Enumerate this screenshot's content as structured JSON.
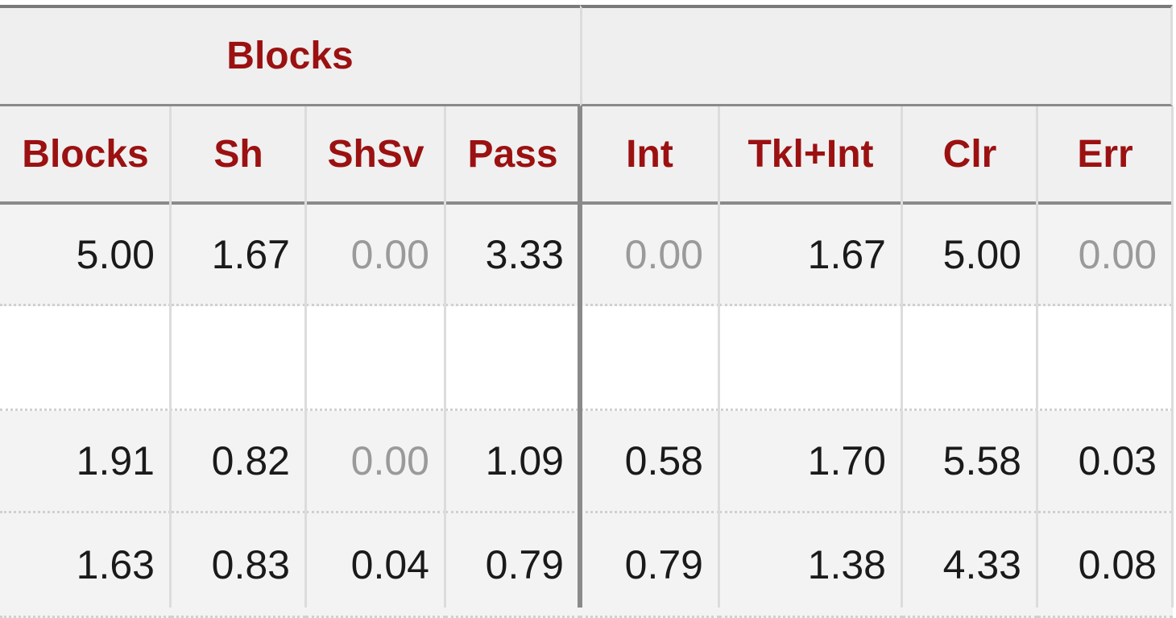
{
  "table": {
    "group_header": "Blocks",
    "columns": [
      "Blocks",
      "Sh",
      "ShSv",
      "Pass",
      "Int",
      "Tkl+Int",
      "Clr",
      "Err"
    ],
    "rows": [
      [
        "5.00",
        "1.67",
        "0.00",
        "3.33",
        "0.00",
        "1.67",
        "5.00",
        "0.00"
      ],
      [
        "1.91",
        "0.82",
        "0.00",
        "1.09",
        "0.58",
        "1.70",
        "5.58",
        "0.03"
      ],
      [
        "1.63",
        "0.83",
        "0.04",
        "0.79",
        "0.79",
        "1.38",
        "4.33",
        "0.08"
      ]
    ]
  }
}
